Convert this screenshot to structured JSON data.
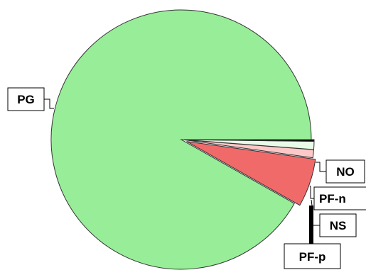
{
  "chart_data": {
    "type": "pie",
    "title": "",
    "slices": [
      {
        "label": "PG",
        "value": 91.8,
        "color": "#98ee98"
      },
      {
        "label": "NO",
        "value": 6.0,
        "color": "#f16a6a"
      },
      {
        "label": "PF-n",
        "value": 1.0,
        "color": "#ffc8c8"
      },
      {
        "label": "NS",
        "value": 1.0,
        "color": "#e8fbe8"
      },
      {
        "label": "PF-p",
        "value": 0.2,
        "color": "#000000"
      }
    ],
    "legend": "none"
  }
}
